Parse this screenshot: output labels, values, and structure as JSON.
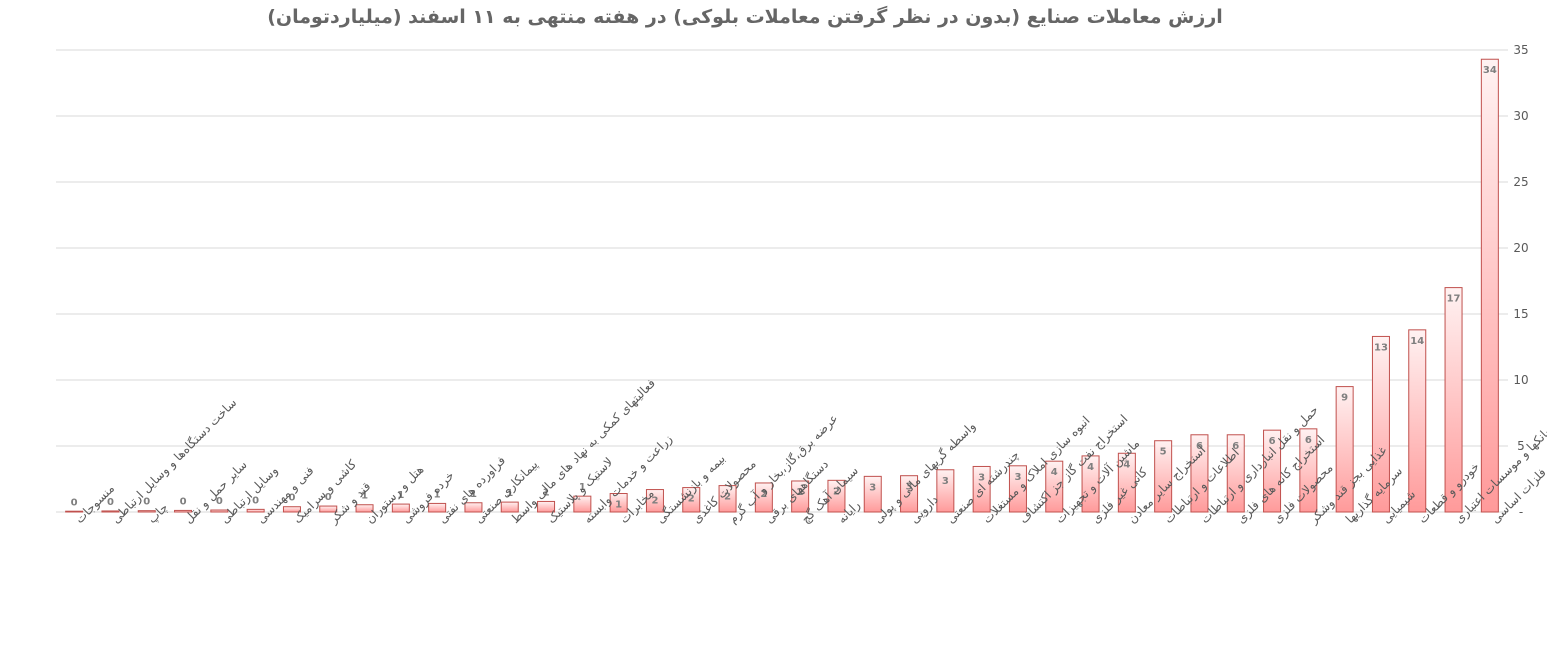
{
  "chart_data": {
    "type": "bar",
    "title": "ارزش معاملات صنایع (بدون در نظر گرفتن معاملات بلوکی) در هفته منتهی به ۱۱ اسفند (میلیاردتومان)",
    "xlabel": "",
    "ylabel": "",
    "ylim": [
      0,
      35
    ],
    "yticks": [
      0,
      5,
      10,
      15,
      20,
      25,
      30,
      35
    ],
    "y_axis_position": "right",
    "grid": true,
    "legend": "none",
    "bar_fill_top": "#FFF2F2",
    "bar_fill_bottom": "#FF9A9A",
    "bar_stroke": "#C0504D",
    "label_color": "#7F7F7F",
    "categories": [
      "منسوجات",
      "ساخت دستگاه‌ها و وسایل ارتباطی",
      "چاپ",
      "سایر حمل و نقل",
      "وسایل ارتباطی",
      "فنی و مهندسی",
      "کاشی و سرامیک",
      "قند و شکر",
      "هتل و رستوران",
      "خرده فروشی",
      "فراورده های نفتی",
      "پیمانکاری صنعتی",
      "فعالیتهای کمکی به نهاد های مالی واسط",
      "لاستیک و پلاستیک",
      "زراعت و خدمات وابسته",
      "مخابرات",
      "بیمه و بازنشستگی",
      "محصولات کاغذی",
      "عرضه برق،گاز،بخار و آب گرم",
      "دستگاههای برقی",
      "سیمان آهک گچ",
      "رایانه",
      "واسطه گریهای مالی و پولی",
      "دارویی",
      "چندرشته ای صنعتی",
      "انبوه سازی املاک و مستغلات",
      "استخراج نفت گاز جز اکتشاف",
      "ماشین آلات و تجهیزات",
      "کانی غیر فلزی",
      "استخراج سایر معادن",
      "اطلاعات و ارتباطات",
      "حمل و نقل انبارداری و ارتباطات",
      "استخراج کانه های فلزی",
      "محصولات فلزی",
      "غذایی بجز قند وشکر",
      "سرمایه گذاریها",
      "شیمیایی",
      "خودرو و قطعات",
      "بانکها و موسسات اعتباری",
      "فلزات اساسی"
    ],
    "values": [
      0.05,
      0.08,
      0.1,
      0.12,
      0.15,
      0.2,
      0.4,
      0.45,
      0.55,
      0.6,
      0.65,
      0.7,
      0.75,
      0.8,
      1.2,
      1.4,
      1.7,
      1.85,
      2.0,
      2.2,
      2.35,
      2.4,
      2.7,
      2.75,
      3.2,
      3.45,
      3.5,
      3.85,
      4.25,
      4.45,
      5.4,
      5.85,
      5.85,
      6.2,
      6.3,
      9.5,
      13.3,
      13.8,
      17.0,
      34.3
    ],
    "data_labels": [
      "0",
      "0",
      "0",
      "0",
      "0",
      "0",
      "0",
      "0",
      "1",
      "1",
      "1",
      "1",
      "1",
      "1",
      "1",
      "1",
      "2",
      "2",
      "2",
      "2",
      "2",
      "2",
      "3",
      "3",
      "3",
      "3",
      "3",
      "4",
      "4",
      "4",
      "5",
      "6",
      "6",
      "6",
      "6",
      "9",
      "13",
      "14",
      "17",
      "34"
    ]
  }
}
